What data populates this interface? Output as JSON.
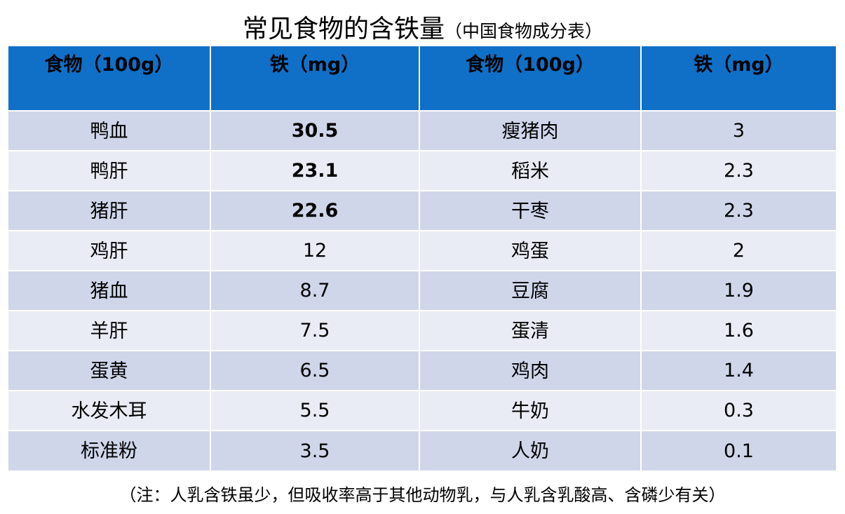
{
  "title": {
    "main": "常见食物的含铁量",
    "sub": "（中国食物成分表）"
  },
  "table": {
    "headers": [
      "食物（100g）",
      "铁（mg）",
      "食物（100g）",
      "铁（mg）"
    ],
    "rows": [
      [
        "鸭血",
        "30.5",
        "瘦猪肉",
        "3"
      ],
      [
        "鸭肝",
        "23.1",
        "稻米",
        "2.3"
      ],
      [
        "猪肝",
        "22.6",
        "干枣",
        "2.3"
      ],
      [
        "鸡肝",
        "12",
        "鸡蛋",
        "2"
      ],
      [
        "猪血",
        "8.7",
        "豆腐",
        "1.9"
      ],
      [
        "羊肝",
        "7.5",
        "蛋清",
        "1.6"
      ],
      [
        "蛋黄",
        "6.5",
        "鸡肉",
        "1.4"
      ],
      [
        "水发木耳",
        "5.5",
        "牛奶",
        "0.3"
      ],
      [
        "标准粉",
        "3.5",
        "人奶",
        "0.1"
      ]
    ]
  },
  "note": "（注：人乳含铁虽少，但吸收率高于其他动物乳，与人乳含乳酸高、含磷少有关）",
  "colors": {
    "header": "#1070c8",
    "row_odd": "#cfd6ea",
    "row_even": "#e9ecf5"
  }
}
